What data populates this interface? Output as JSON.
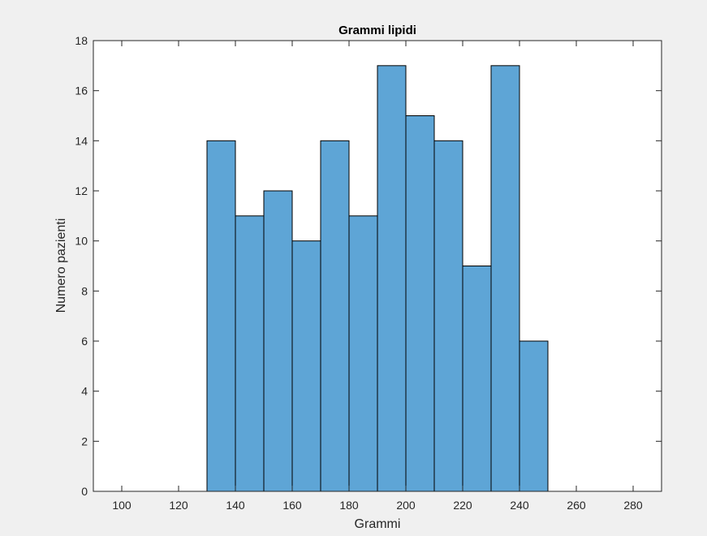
{
  "chart_data": {
    "type": "bar",
    "title": "Grammi lipidi",
    "xlabel": "Grammi",
    "ylabel": "Numero pazienti",
    "xlim": [
      90,
      290
    ],
    "ylim": [
      0,
      18
    ],
    "xticks": [
      100,
      120,
      140,
      160,
      180,
      200,
      220,
      240,
      260,
      280
    ],
    "yticks": [
      0,
      2,
      4,
      6,
      8,
      10,
      12,
      14,
      16,
      18
    ],
    "bin_width": 10,
    "bin_edges": [
      130,
      140,
      150,
      160,
      170,
      180,
      190,
      200,
      210,
      220,
      230,
      240,
      250
    ],
    "values": [
      14,
      11,
      12,
      10,
      14,
      11,
      17,
      15,
      14,
      9,
      17,
      6
    ],
    "grid": false,
    "bar_color": "#5ea5d6",
    "edge_color": "#000000",
    "background": "#ffffff"
  }
}
